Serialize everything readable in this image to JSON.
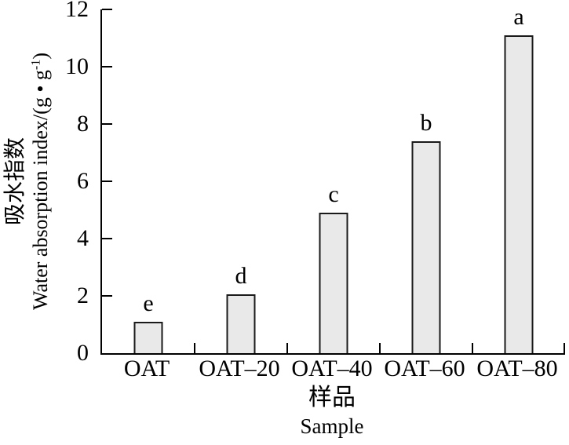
{
  "chart_data": {
    "type": "bar",
    "categories": [
      "OAT",
      "OAT–20",
      "OAT–40",
      "OAT–60",
      "OAT–80"
    ],
    "values": [
      1.1,
      2.05,
      4.9,
      7.4,
      11.1
    ],
    "bar_labels": [
      "e",
      "d",
      "c",
      "b",
      "a"
    ],
    "yticks": [
      0,
      2,
      4,
      6,
      8,
      10,
      12
    ],
    "ylim": [
      0,
      12
    ],
    "ylabel_cn": "吸水指数",
    "ylabel_en_main": "Water absorption index/(g • g",
    "ylabel_en_sup": "-1",
    "ylabel_en_close": ")",
    "xlabel_cn": "样品",
    "xlabel_en": "Sample",
    "bar_fill": "#e9e9e9",
    "bar_border": "#1a1a1a",
    "axis_color": "#000000",
    "grid": false,
    "legend": false
  }
}
